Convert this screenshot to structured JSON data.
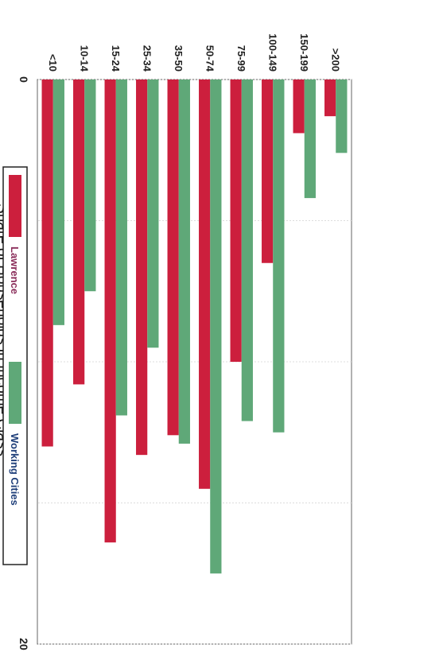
{
  "chart_data": {
    "type": "bar",
    "orientation": "horizontal",
    "categories": [
      "<10",
      "10-14",
      "15-24",
      "25-34",
      "35-50",
      "50-74",
      "75-99",
      "100-149",
      "150-199",
      ">200"
    ],
    "series": [
      {
        "name": "Lawrence",
        "color": "#cc1f3d",
        "values": [
          13.0,
          10.8,
          16.4,
          13.3,
          12.6,
          14.5,
          10.0,
          6.5,
          1.9,
          1.3
        ]
      },
      {
        "name": "Working Cities",
        "color": "#5fa878",
        "values": [
          8.7,
          7.5,
          11.9,
          9.5,
          12.9,
          17.5,
          12.1,
          12.5,
          4.2,
          2.6
        ]
      }
    ],
    "xlabel": "Share of Households in Income Class",
    "ylabel": "",
    "xlim": [
      0,
      20
    ],
    "xticks": [
      "0",
      "5",
      "10",
      "15",
      "20"
    ],
    "grid": true,
    "legend": "bottom",
    "rotated_image": true
  }
}
